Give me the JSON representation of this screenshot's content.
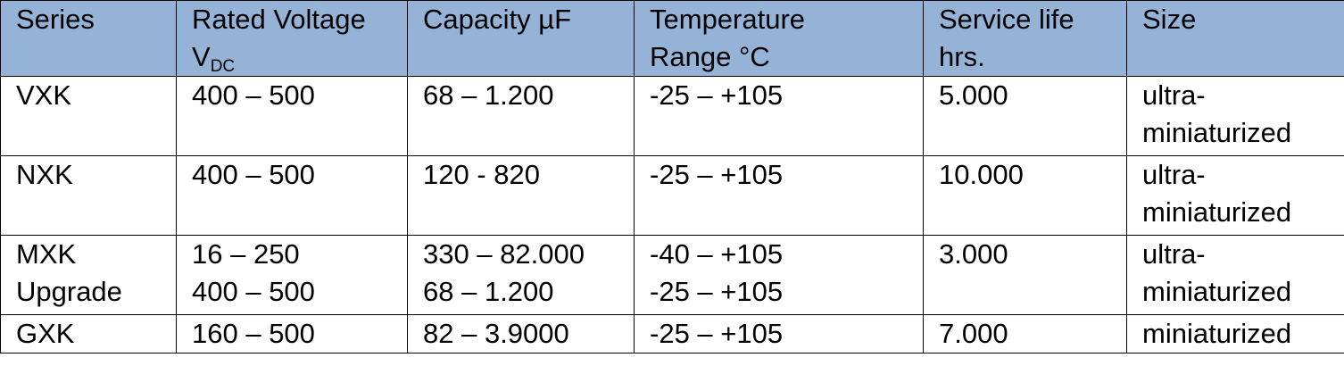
{
  "table": {
    "headers": [
      {
        "line1": "Series",
        "line2": ""
      },
      {
        "line1": "Rated Voltage",
        "line2": "V",
        "line2_sub": "DC"
      },
      {
        "line1": "Capacity µF",
        "line2": ""
      },
      {
        "line1": "Temperature",
        "line2": "Range °C"
      },
      {
        "line1": "Service life",
        "line2": "hrs."
      },
      {
        "line1": "Size",
        "line2": ""
      }
    ],
    "rows": [
      {
        "series": [
          "VXK"
        ],
        "voltage": [
          "400 – 500"
        ],
        "capacity": [
          "68 – 1.200"
        ],
        "temperature": [
          "-25 – +105"
        ],
        "service_life": "5.000",
        "size": [
          "ultra-",
          "miniaturized"
        ]
      },
      {
        "series": [
          "NXK"
        ],
        "voltage": [
          "400 – 500"
        ],
        "capacity": [
          "120 - 820"
        ],
        "temperature": [
          "-25 – +105"
        ],
        "service_life": "10.000",
        "size": [
          "ultra-",
          "miniaturized"
        ]
      },
      {
        "series": [
          "MXK",
          "Upgrade"
        ],
        "voltage": [
          "16 – 250",
          "400 – 500"
        ],
        "capacity": [
          "330 – 82.000",
          "68 – 1.200"
        ],
        "temperature": [
          "-40 – +105",
          "-25 – +105"
        ],
        "service_life": "3.000",
        "size": [
          "ultra-",
          "miniaturized"
        ]
      },
      {
        "series": [
          "GXK"
        ],
        "voltage": [
          "160 – 500"
        ],
        "capacity": [
          "82 – 3.9000"
        ],
        "temperature": [
          "-25 – +105"
        ],
        "service_life": "7.000",
        "size": [
          "miniaturized"
        ]
      }
    ],
    "colors": {
      "header_background": "#95b3d7",
      "border": "#000000"
    }
  }
}
